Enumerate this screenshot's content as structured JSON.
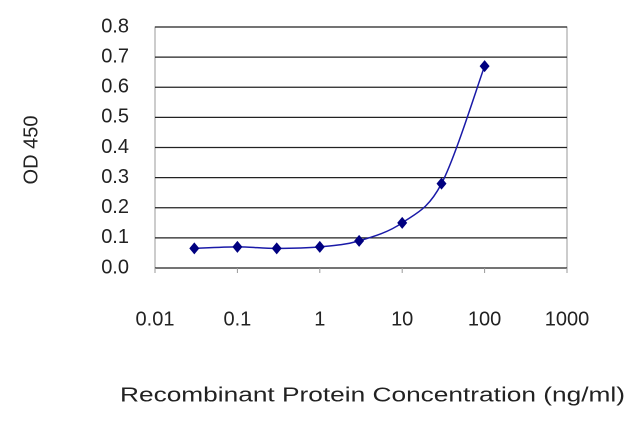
{
  "chart_data": {
    "type": "line",
    "x_label": "Recombinant Protein Concentration (ng/ml)",
    "y_label": "OD 450",
    "x": [
      0.03,
      0.1,
      0.3,
      1,
      3,
      10,
      30,
      100
    ],
    "series": [
      {
        "color": "#1a1aa8",
        "values": [
          0.065,
          0.07,
          0.065,
          0.07,
          0.09,
          0.15,
          0.28,
          0.67
        ]
      }
    ],
    "xlim": [
      0.01,
      1000
    ],
    "xticks": [
      0.01,
      0.1,
      1,
      10,
      100,
      1000
    ],
    "log_x": true,
    "ylim": [
      0,
      0.8
    ],
    "yticks": [
      {
        "value": 0,
        "label": "0.0"
      },
      0.1,
      0.2,
      0.3,
      0.4,
      0.5,
      0.6,
      0.7,
      0.8
    ],
    "grid": true
  }
}
